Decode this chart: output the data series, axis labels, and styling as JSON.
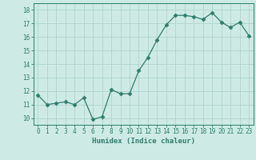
{
  "x": [
    0,
    1,
    2,
    3,
    4,
    5,
    6,
    7,
    8,
    9,
    10,
    11,
    12,
    13,
    14,
    15,
    16,
    17,
    18,
    19,
    20,
    21,
    22,
    23
  ],
  "y": [
    11.7,
    11.0,
    11.1,
    11.2,
    11.0,
    11.5,
    9.9,
    10.1,
    12.1,
    11.8,
    11.8,
    13.5,
    14.5,
    15.8,
    16.9,
    17.6,
    17.6,
    17.5,
    17.3,
    17.8,
    17.1,
    16.7,
    17.1,
    16.1
  ],
  "title": "",
  "xlabel": "Humidex (Indice chaleur)",
  "ylabel": "",
  "xlim": [
    -0.5,
    23.5
  ],
  "ylim": [
    9.5,
    18.5
  ],
  "yticks": [
    10,
    11,
    12,
    13,
    14,
    15,
    16,
    17,
    18
  ],
  "xticks": [
    0,
    1,
    2,
    3,
    4,
    5,
    6,
    7,
    8,
    9,
    10,
    11,
    12,
    13,
    14,
    15,
    16,
    17,
    18,
    19,
    20,
    21,
    22,
    23
  ],
  "line_color": "#2e7d6e",
  "marker": "D",
  "marker_size": 2.5,
  "bg_color": "#ceeae4",
  "grid_color": "#afd4ce",
  "tick_color": "#2e7d6e",
  "label_color": "#2e7d6e",
  "font_family": "monospace",
  "tick_fontsize": 5.5,
  "xlabel_fontsize": 6.5
}
